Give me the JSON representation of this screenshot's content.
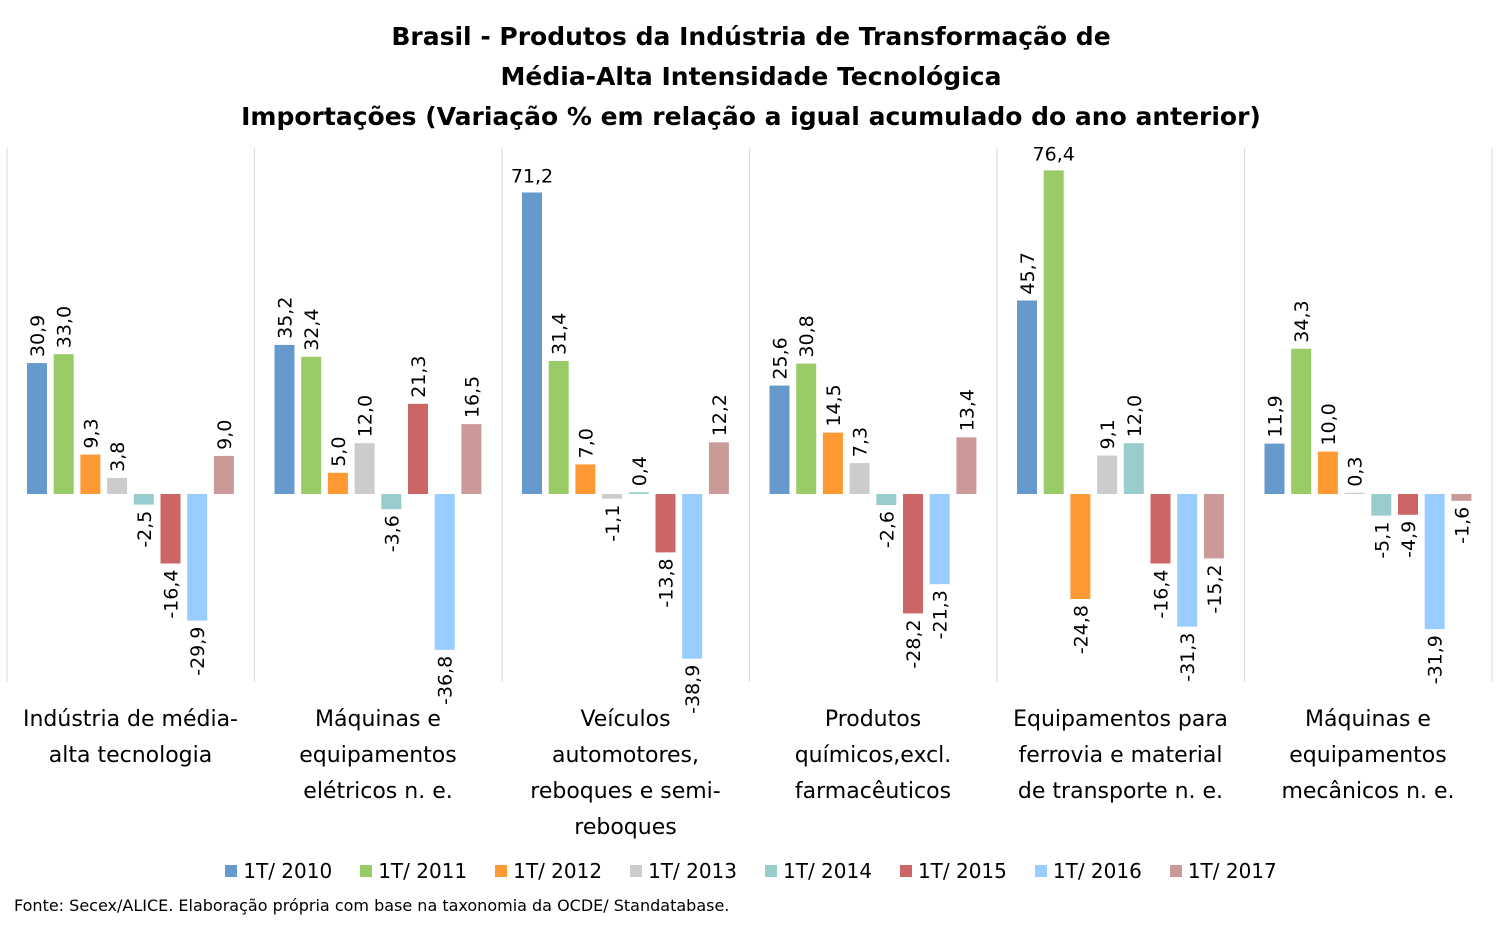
{
  "title": [
    "Brasil - Produtos da Indústria de Transformação de",
    "Média-Alta Intensidade Tecnológica",
    "Importações (Variação % em relação a igual acumulado do ano anterior)"
  ],
  "source": "Fonte: Secex/ALICE. Elaboração própria com base na taxonomia da OCDE/ Standatabase.",
  "chart_data": {
    "type": "bar",
    "categories": [
      [
        "Indústria de média-",
        "alta tecnologia"
      ],
      [
        "Máquinas e",
        "equipamentos",
        "elétricos n. e."
      ],
      [
        "Veículos",
        "automotores,",
        "reboques e semi-",
        "reboques"
      ],
      [
        "Produtos",
        "químicos,excl.",
        "farmacêuticos"
      ],
      [
        "Equipamentos para",
        "ferrovia e material",
        "de transporte n. e."
      ],
      [
        "Máquinas e",
        "equipamentos",
        "mecânicos  n. e."
      ]
    ],
    "series": [
      {
        "name": "1T/ 2010",
        "color": "#6699CC",
        "values": [
          30.9,
          35.2,
          71.2,
          25.6,
          45.7,
          11.9
        ],
        "labels": [
          "30,9",
          "35,2",
          "71,2",
          "25,6",
          "45,7",
          "11,9"
        ]
      },
      {
        "name": "1T/ 2011",
        "color": "#99CC66",
        "values": [
          33.0,
          32.4,
          31.4,
          30.8,
          76.4,
          34.3
        ],
        "labels": [
          "33,0",
          "32,4",
          "31,4",
          "30,8",
          "76,4",
          "34,3"
        ]
      },
      {
        "name": "1T/ 2012",
        "color": "#FF9933",
        "values": [
          9.3,
          5.0,
          7.0,
          14.5,
          -24.8,
          10.0
        ],
        "labels": [
          "9,3",
          "5,0",
          "7,0",
          "14,5",
          "-24,8",
          "10,0"
        ]
      },
      {
        "name": "1T/ 2013",
        "color": "#CCCCCC",
        "values": [
          3.8,
          12.0,
          -1.1,
          7.3,
          9.1,
          0.3
        ],
        "labels": [
          "3,8",
          "12,0",
          "-1,1",
          "7,3",
          "9,1",
          "0,3"
        ]
      },
      {
        "name": "1T/ 2014",
        "color": "#99CCCC",
        "values": [
          -2.5,
          -3.6,
          0.4,
          -2.6,
          12.0,
          -5.1
        ],
        "labels": [
          "-2,5",
          "-3,6",
          "0,4",
          "-2,6",
          "12,0",
          "-5,1"
        ]
      },
      {
        "name": "1T/ 2015",
        "color": "#CC6666",
        "values": [
          -16.4,
          21.3,
          -13.8,
          -28.2,
          -16.4,
          -4.9
        ],
        "labels": [
          "-16,4",
          "21,3",
          "-13,8",
          "-28,2",
          "-16,4",
          "-4,9"
        ]
      },
      {
        "name": "1T/ 2016",
        "color": "#99CCFF",
        "values": [
          -29.9,
          -36.8,
          -38.9,
          -21.3,
          -31.3,
          -31.9
        ],
        "labels": [
          "-29,9",
          "-36,8",
          "-38,9",
          "-21,3",
          "-31,3",
          "-31,9"
        ]
      },
      {
        "name": "1T/ 2017",
        "color": "#CC9999",
        "values": [
          9.0,
          16.5,
          12.2,
          13.4,
          -15.2,
          -1.6
        ],
        "labels": [
          "9,0",
          "16,5",
          "12,2",
          "13,4",
          "-15,2",
          "-1,6"
        ]
      }
    ],
    "grid": false,
    "legend_position": "bottom"
  }
}
